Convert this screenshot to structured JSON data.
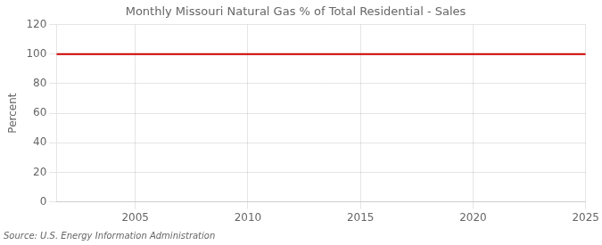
{
  "chart_data": {
    "type": "line",
    "title": "Monthly Missouri Natural Gas % of Total Residential - Sales",
    "ylabel": "Percent",
    "annotations": [
      "Source: U.S. Energy Information Administration"
    ],
    "x": [
      2001.5,
      2025
    ],
    "values": [
      100,
      100
    ],
    "color": "#cc0000",
    "xlim": [
      2001.5,
      2025
    ],
    "xticks": [
      2005,
      2010,
      2015,
      2020,
      2025
    ],
    "ylim": [
      0,
      120
    ],
    "yticks": [
      0,
      20,
      40,
      60,
      80,
      100,
      120
    ],
    "grid": true
  }
}
